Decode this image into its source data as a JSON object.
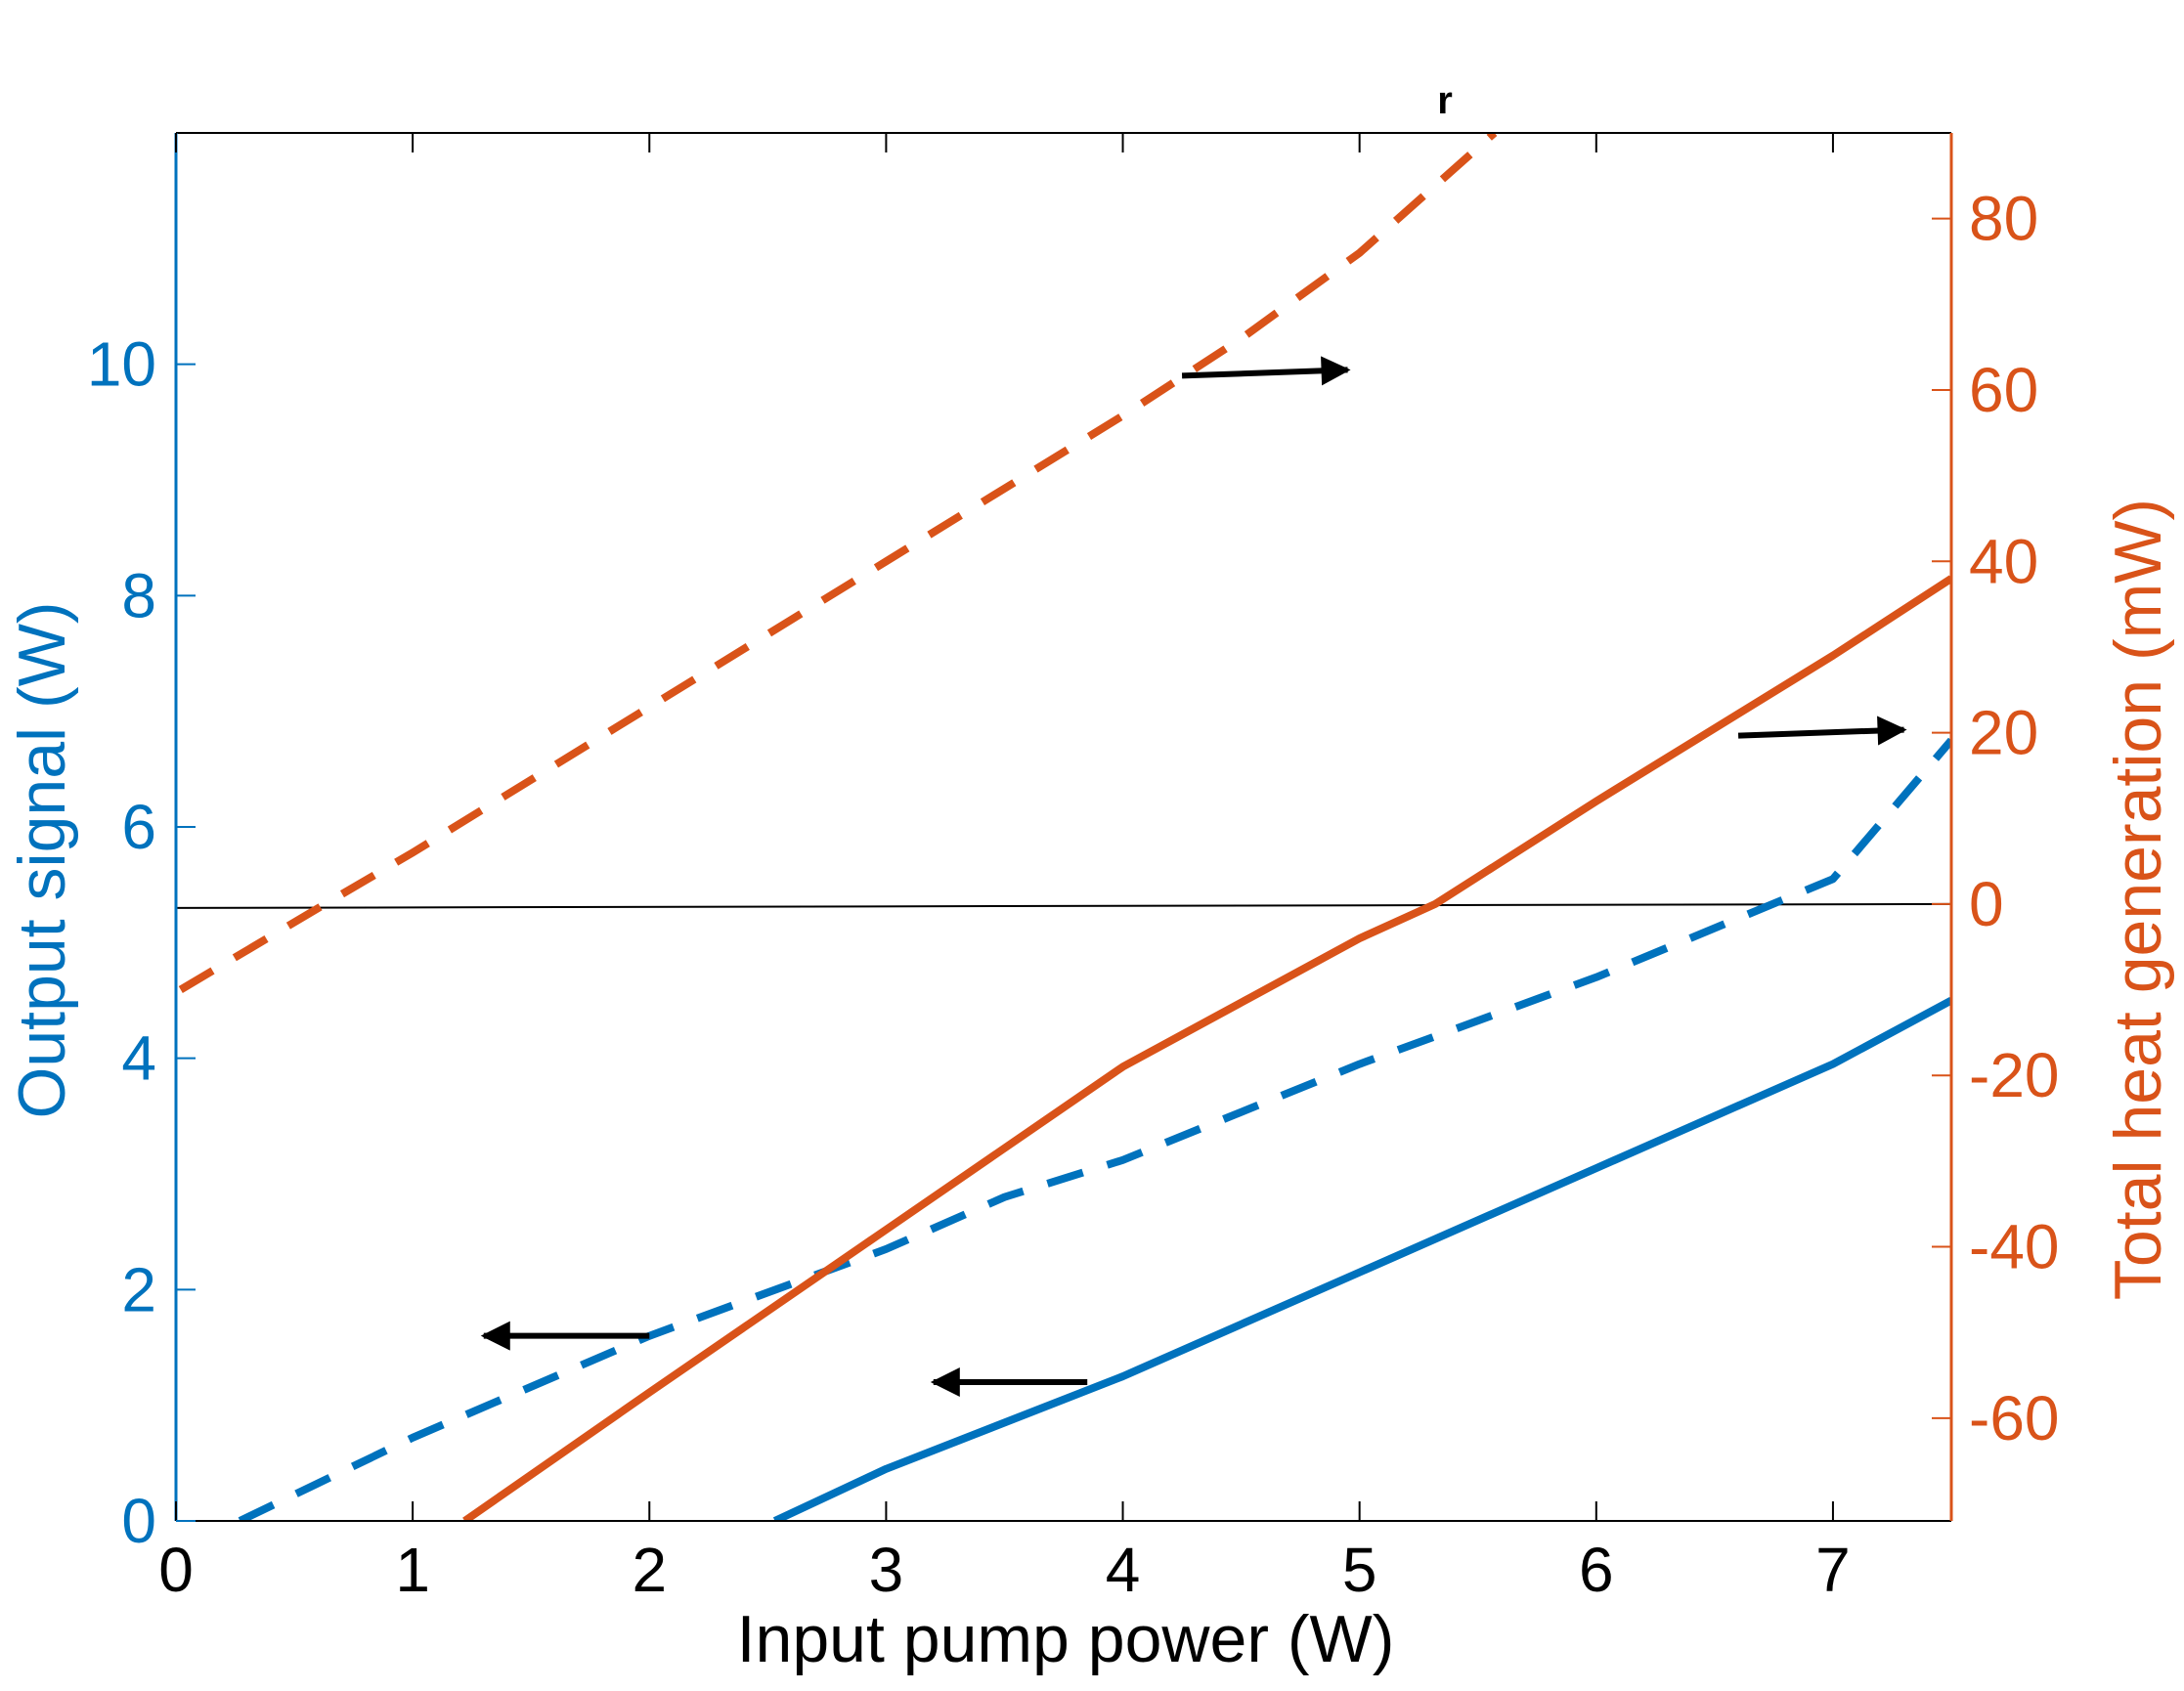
{
  "chart_data": {
    "type": "line",
    "xlabel": "Input pump power (W)",
    "ylabel_left": "Output signal (W)",
    "ylabel_right": "Total heat generation (mW)",
    "top_mark": "r",
    "xlim": [
      0,
      7.5
    ],
    "ylim_left": [
      0,
      12
    ],
    "ylim_right": [
      -72,
      90
    ],
    "x_ticks": [
      0,
      1,
      2,
      3,
      4,
      5,
      6,
      7
    ],
    "y_left_ticks": [
      0,
      2,
      4,
      6,
      8,
      10
    ],
    "y_right_ticks": [
      -60,
      -40,
      -20,
      0,
      20,
      40,
      60,
      80
    ],
    "colors": {
      "left_axis": "#0072BD",
      "right_axis": "#D95319",
      "axes": "#000000"
    },
    "zero_line": {
      "axis": "right",
      "y": 0
    },
    "series": [
      {
        "axis": "left",
        "color": "#0072BD",
        "style": "dashed",
        "x": [
          0.27,
          1.0,
          2.0,
          3.0,
          3.5,
          4.0,
          5.0,
          6.0,
          7.0,
          7.5
        ],
        "y": [
          0.0,
          0.72,
          1.6,
          2.35,
          2.8,
          3.12,
          3.95,
          4.7,
          5.55,
          6.75
        ]
      },
      {
        "axis": "left",
        "color": "#0072BD",
        "style": "solid",
        "x": [
          2.53,
          3.0,
          4.0,
          5.0,
          6.0,
          7.0,
          7.5
        ],
        "y": [
          0.0,
          0.45,
          1.25,
          2.15,
          3.05,
          3.95,
          4.5
        ]
      },
      {
        "axis": "right",
        "color": "#D95319",
        "style": "dashed",
        "x": [
          0.02,
          0.63,
          1.0,
          2.0,
          3.0,
          4.0,
          4.5,
          5.0,
          5.57
        ],
        "y": [
          -10,
          0,
          6,
          23,
          40,
          57,
          66,
          76,
          90
        ]
      },
      {
        "axis": "right",
        "color": "#D95319",
        "style": "solid",
        "x": [
          1.22,
          2.0,
          3.0,
          4.0,
          5.0,
          5.32,
          6.0,
          7.0,
          7.5
        ],
        "y": [
          -72,
          -57,
          -38,
          -19,
          -4,
          0,
          12,
          29,
          38
        ]
      }
    ],
    "arrows": [
      {
        "axis": "right",
        "x_from": 4.25,
        "x_to": 4.95,
        "y": 62,
        "direction": "right"
      },
      {
        "axis": "right",
        "x_from": 6.6,
        "x_to": 7.3,
        "y": 20,
        "direction": "right"
      },
      {
        "axis": "left",
        "x_from": 2.0,
        "x_to": 1.3,
        "y": 1.6,
        "direction": "left"
      },
      {
        "axis": "left",
        "x_from": 3.85,
        "x_to": 3.2,
        "y": 1.2,
        "direction": "left"
      }
    ]
  }
}
